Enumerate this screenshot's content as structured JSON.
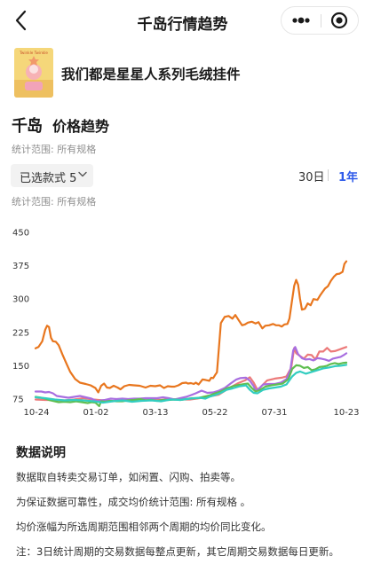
{
  "nav": {
    "title": "千岛行情趋势",
    "back_icon": "chevron-left-icon",
    "more_icon": "more-dots-icon",
    "close_icon": "target-close-icon"
  },
  "product": {
    "name": "我们都是星星人系列毛绒挂件",
    "thumbnail_text": "Twinkle Twinkle"
  },
  "section": {
    "brand": "千岛",
    "title": "价格趋势"
  },
  "scope_label_1": "统计范围: 所有规格",
  "style_selector": {
    "label": "已选款式 5"
  },
  "ranges": {
    "d30": "30日",
    "y1": "1年",
    "selected": "1年"
  },
  "scope_label_2": "统计范围: 所有规格",
  "colors": {
    "orange": "#e8761e",
    "pink": "#ec7a7a",
    "purple": "#a86ee0",
    "green": "#5fbe50",
    "cyan": "#32cdc0",
    "accent": "#2f5bea"
  },
  "chart_data": {
    "type": "line",
    "y_ticks": [
      "450",
      "375",
      "300",
      "225",
      "150",
      "75"
    ],
    "x_ticks": [
      "10-24",
      "01-02",
      "03-13",
      "05-22",
      "07-31",
      "10-23"
    ],
    "ylim": [
      75,
      450
    ],
    "grid": false,
    "legend": "none",
    "series": [
      {
        "color": "#e8761e",
        "points": [
          [
            0,
            189
          ],
          [
            3,
            192
          ],
          [
            7,
            205
          ],
          [
            10,
            231
          ],
          [
            12,
            240
          ],
          [
            14,
            237
          ],
          [
            16,
            213
          ],
          [
            18,
            205
          ],
          [
            21,
            204
          ],
          [
            24,
            196
          ],
          [
            28,
            175
          ],
          [
            32,
            155
          ],
          [
            36,
            136
          ],
          [
            41,
            120
          ],
          [
            46,
            112
          ],
          [
            52,
            109
          ],
          [
            57,
            106
          ],
          [
            62,
            100
          ],
          [
            65,
            90
          ],
          [
            68,
            105
          ],
          [
            71,
            110
          ],
          [
            74,
            101
          ],
          [
            77,
            100
          ],
          [
            81,
            105
          ],
          [
            85,
            101
          ],
          [
            88,
            97
          ],
          [
            92,
            104
          ],
          [
            97,
            107
          ],
          [
            102,
            106
          ],
          [
            108,
            105
          ],
          [
            114,
            101
          ],
          [
            119,
            105
          ],
          [
            124,
            104
          ],
          [
            129,
            106
          ],
          [
            133,
            100
          ],
          [
            137,
            104
          ],
          [
            141,
            103
          ],
          [
            144,
            103
          ],
          [
            148,
            106
          ],
          [
            152,
            111
          ],
          [
            156,
            112
          ],
          [
            158,
            110
          ],
          [
            161,
            111
          ],
          [
            164,
            109
          ],
          [
            166,
            112
          ],
          [
            169,
            108
          ],
          [
            173,
            119
          ],
          [
            176,
            118
          ],
          [
            180,
            116
          ],
          [
            182,
            123
          ],
          [
            184,
            122
          ],
          [
            186,
            129
          ],
          [
            188,
            135
          ],
          [
            190,
            190
          ],
          [
            192,
            246
          ],
          [
            196,
            260
          ],
          [
            200,
            262
          ],
          [
            204,
            256
          ],
          [
            207,
            264
          ],
          [
            210,
            254
          ],
          [
            214,
            241
          ],
          [
            217,
            243
          ],
          [
            220,
            247
          ],
          [
            224,
            249
          ],
          [
            228,
            245
          ],
          [
            231,
            248
          ],
          [
            235,
            234
          ],
          [
            238,
            240
          ],
          [
            242,
            241
          ],
          [
            246,
            244
          ],
          [
            249,
            241
          ],
          [
            252,
            241
          ],
          [
            255,
            238
          ],
          [
            258,
            243
          ],
          [
            261,
            244
          ],
          [
            263,
            256
          ],
          [
            265,
            285
          ],
          [
            268,
            330
          ],
          [
            270,
            343
          ],
          [
            272,
            332
          ],
          [
            274,
            301
          ],
          [
            276,
            276
          ],
          [
            279,
            278
          ],
          [
            282,
            290
          ],
          [
            285,
            286
          ],
          [
            288,
            300
          ],
          [
            292,
            298
          ],
          [
            295,
            309
          ],
          [
            297,
            315
          ],
          [
            300,
            324
          ],
          [
            303,
            329
          ],
          [
            306,
            341
          ],
          [
            309,
            350
          ],
          [
            312,
            356
          ],
          [
            315,
            357
          ],
          [
            318,
            361
          ],
          [
            320,
            379
          ],
          [
            322,
            385
          ]
        ]
      },
      {
        "color": "#ec7a7a",
        "points": [
          [
            0,
            74
          ],
          [
            10,
            73
          ],
          [
            20,
            73
          ],
          [
            30,
            72
          ],
          [
            40,
            74
          ],
          [
            50,
            77
          ],
          [
            60,
            74
          ],
          [
            70,
            72
          ],
          [
            80,
            70
          ],
          [
            90,
            73
          ],
          [
            100,
            74
          ],
          [
            110,
            76
          ],
          [
            120,
            74
          ],
          [
            130,
            73
          ],
          [
            140,
            75
          ],
          [
            150,
            74
          ],
          [
            160,
            74
          ],
          [
            170,
            77
          ],
          [
            180,
            81
          ],
          [
            190,
            85
          ],
          [
            200,
            99
          ],
          [
            210,
            111
          ],
          [
            217,
            117
          ],
          [
            222,
            124
          ],
          [
            226,
            112
          ],
          [
            230,
            95
          ],
          [
            234,
            104
          ],
          [
            240,
            117
          ],
          [
            248,
            121
          ],
          [
            255,
            123
          ],
          [
            260,
            126
          ],
          [
            265,
            146
          ],
          [
            268,
            190
          ],
          [
            270,
            178
          ],
          [
            274,
            172
          ],
          [
            278,
            166
          ],
          [
            282,
            175
          ],
          [
            286,
            174
          ],
          [
            290,
            164
          ],
          [
            294,
            182
          ],
          [
            298,
            182
          ],
          [
            302,
            190
          ],
          [
            306,
            182
          ],
          [
            310,
            183
          ],
          [
            314,
            186
          ],
          [
            318,
            189
          ],
          [
            322,
            192
          ]
        ]
      },
      {
        "color": "#a86ee0",
        "points": [
          [
            0,
            92
          ],
          [
            6,
            92
          ],
          [
            10,
            90
          ],
          [
            14,
            91
          ],
          [
            18,
            88
          ],
          [
            22,
            82
          ],
          [
            28,
            80
          ],
          [
            34,
            78
          ],
          [
            40,
            80
          ],
          [
            46,
            82
          ],
          [
            52,
            79
          ],
          [
            58,
            76
          ],
          [
            64,
            70
          ],
          [
            68,
            72
          ],
          [
            72,
            73
          ],
          [
            78,
            76
          ],
          [
            84,
            75
          ],
          [
            90,
            76
          ],
          [
            96,
            75
          ],
          [
            102,
            76
          ],
          [
            108,
            76
          ],
          [
            114,
            77
          ],
          [
            120,
            77
          ],
          [
            126,
            77
          ],
          [
            132,
            79
          ],
          [
            138,
            77
          ],
          [
            144,
            74
          ],
          [
            150,
            77
          ],
          [
            156,
            80
          ],
          [
            160,
            83
          ],
          [
            166,
            88
          ],
          [
            172,
            94
          ],
          [
            178,
            89
          ],
          [
            184,
            90
          ],
          [
            190,
            94
          ],
          [
            196,
            100
          ],
          [
            202,
            110
          ],
          [
            208,
            119
          ],
          [
            212,
            122
          ],
          [
            218,
            123
          ],
          [
            222,
            116
          ],
          [
            226,
            104
          ],
          [
            228,
            94
          ],
          [
            232,
            100
          ],
          [
            236,
            108
          ],
          [
            242,
            109
          ],
          [
            248,
            109
          ],
          [
            254,
            112
          ],
          [
            260,
            120
          ],
          [
            264,
            141
          ],
          [
            267,
            185
          ],
          [
            269,
            192
          ],
          [
            272,
            176
          ],
          [
            276,
            167
          ],
          [
            280,
            164
          ],
          [
            284,
            165
          ],
          [
            288,
            162
          ],
          [
            292,
            167
          ],
          [
            296,
            166
          ],
          [
            300,
            164
          ],
          [
            304,
            161
          ],
          [
            308,
            166
          ],
          [
            312,
            168
          ],
          [
            316,
            170
          ],
          [
            320,
            175
          ],
          [
            322,
            178
          ]
        ]
      },
      {
        "color": "#5fbe50",
        "points": [
          [
            0,
            80
          ],
          [
            6,
            78
          ],
          [
            10,
            76
          ],
          [
            14,
            73
          ],
          [
            18,
            71
          ],
          [
            24,
            68
          ],
          [
            30,
            69
          ],
          [
            36,
            68
          ],
          [
            42,
            70
          ],
          [
            48,
            68
          ],
          [
            54,
            66
          ],
          [
            58,
            68
          ],
          [
            62,
            67
          ],
          [
            66,
            59
          ],
          [
            68,
            70
          ],
          [
            72,
            69
          ],
          [
            78,
            71
          ],
          [
            84,
            70
          ],
          [
            90,
            70
          ],
          [
            96,
            72
          ],
          [
            102,
            73
          ],
          [
            108,
            75
          ],
          [
            114,
            72
          ],
          [
            120,
            73
          ],
          [
            126,
            71
          ],
          [
            132,
            73
          ],
          [
            138,
            73
          ],
          [
            144,
            74
          ],
          [
            150,
            73
          ],
          [
            156,
            75
          ],
          [
            162,
            77
          ],
          [
            168,
            77
          ],
          [
            174,
            80
          ],
          [
            180,
            83
          ],
          [
            186,
            88
          ],
          [
            192,
            92
          ],
          [
            198,
            99
          ],
          [
            206,
            105
          ],
          [
            214,
            108
          ],
          [
            220,
            110
          ],
          [
            224,
            100
          ],
          [
            228,
            92
          ],
          [
            232,
            95
          ],
          [
            238,
            103
          ],
          [
            244,
            106
          ],
          [
            250,
            108
          ],
          [
            256,
            110
          ],
          [
            262,
            120
          ],
          [
            266,
            143
          ],
          [
            270,
            151
          ],
          [
            274,
            150
          ],
          [
            278,
            145
          ],
          [
            282,
            147
          ],
          [
            286,
            140
          ],
          [
            290,
            142
          ],
          [
            294,
            147
          ],
          [
            298,
            148
          ],
          [
            302,
            150
          ],
          [
            306,
            154
          ],
          [
            310,
            156
          ],
          [
            314,
            154
          ],
          [
            318,
            156
          ],
          [
            322,
            157
          ]
        ]
      },
      {
        "color": "#32cdc0",
        "points": [
          [
            0,
            79
          ],
          [
            10,
            77
          ],
          [
            20,
            74
          ],
          [
            30,
            72
          ],
          [
            40,
            73
          ],
          [
            50,
            72
          ],
          [
            60,
            70
          ],
          [
            70,
            67
          ],
          [
            80,
            70
          ],
          [
            90,
            72
          ],
          [
            100,
            69
          ],
          [
            110,
            71
          ],
          [
            120,
            72
          ],
          [
            130,
            70
          ],
          [
            140,
            74
          ],
          [
            150,
            73
          ],
          [
            160,
            76
          ],
          [
            170,
            78
          ],
          [
            176,
            76
          ],
          [
            180,
            80
          ],
          [
            186,
            84
          ],
          [
            192,
            89
          ],
          [
            198,
            96
          ],
          [
            204,
            99
          ],
          [
            212,
            104
          ],
          [
            218,
            106
          ],
          [
            222,
            96
          ],
          [
            226,
            89
          ],
          [
            230,
            88
          ],
          [
            236,
            96
          ],
          [
            242,
            99
          ],
          [
            248,
            101
          ],
          [
            254,
            103
          ],
          [
            260,
            108
          ],
          [
            266,
            126
          ],
          [
            270,
            134
          ],
          [
            274,
            137
          ],
          [
            280,
            132
          ],
          [
            286,
            136
          ],
          [
            292,
            140
          ],
          [
            298,
            144
          ],
          [
            304,
            146
          ],
          [
            310,
            149
          ],
          [
            316,
            150
          ],
          [
            322,
            152
          ]
        ]
      }
    ]
  },
  "notes": {
    "title": "数据说明",
    "lines": [
      "数据取自转卖交易订单，如闲置、闪购、拍卖等。",
      "为保证数据可靠性，成交均价统计范围: 所有规格 。",
      "均价涨幅为所选周期范围相邻两个周期的均价同比变化。",
      "注：3日统计周期的交易数据每整点更新，其它周期交易数据每日更新。"
    ]
  }
}
